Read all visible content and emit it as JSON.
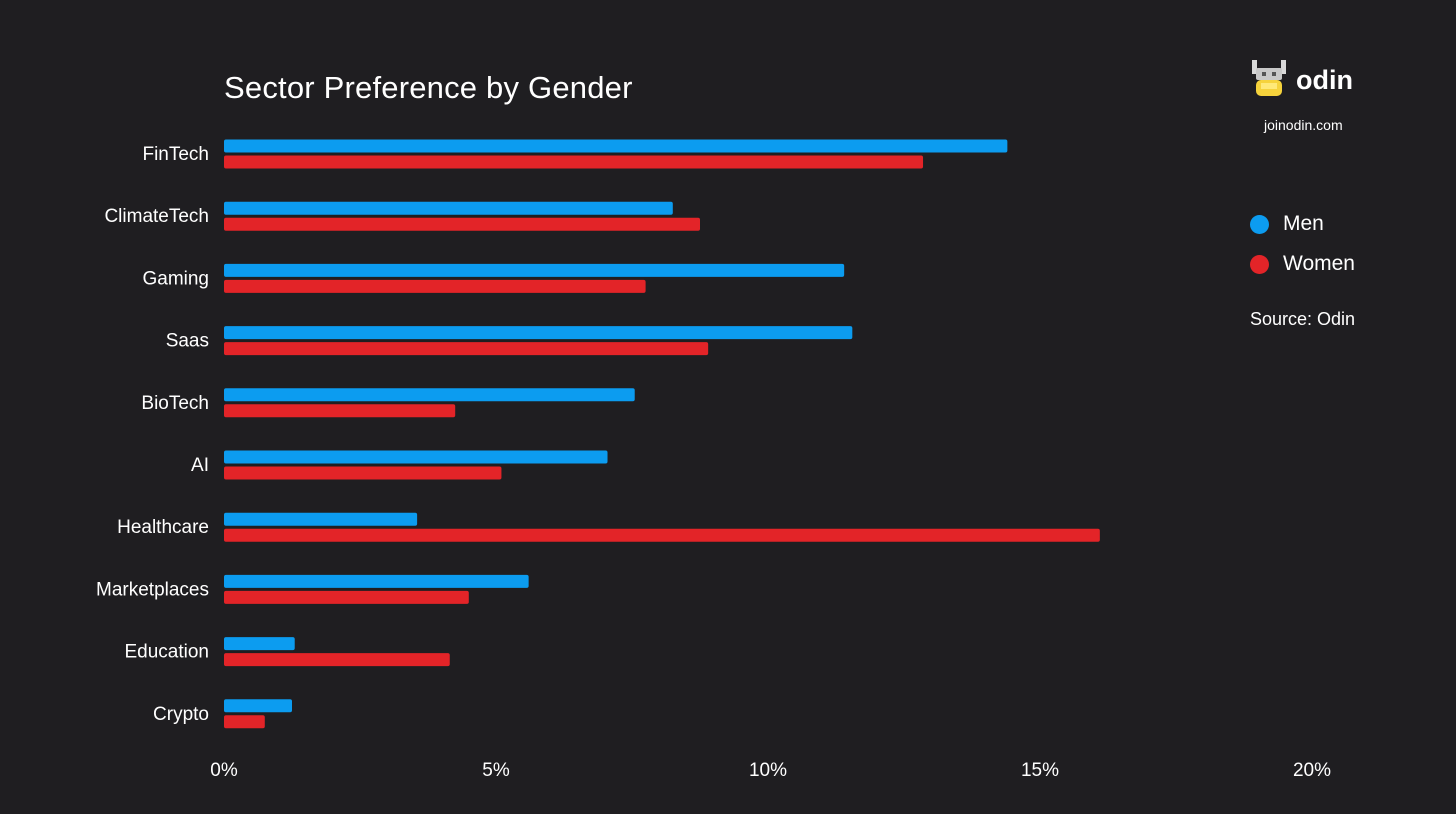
{
  "brand": {
    "name": "odin",
    "url": "joinodin.com",
    "logo_icon": "viking-helmet-icon"
  },
  "source": "Source: Odin",
  "legend": [
    {
      "label": "Men",
      "color": "#0c9cf0"
    },
    {
      "label": "Women",
      "color": "#e32428"
    }
  ],
  "chart_data": {
    "type": "bar",
    "orientation": "horizontal",
    "title": "Sector Preference by Gender",
    "xlabel": "",
    "ylabel": "",
    "categories": [
      "FinTech",
      "ClimateTech",
      "Gaming",
      "Saas",
      "BioTech",
      "AI",
      "Healthcare",
      "Marketplaces",
      "Education",
      "Crypto"
    ],
    "series": [
      {
        "name": "Men",
        "color": "#0c9cf0",
        "values": [
          14.4,
          8.25,
          11.4,
          11.55,
          7.55,
          7.05,
          3.55,
          5.6,
          1.3,
          1.25
        ]
      },
      {
        "name": "Women",
        "color": "#e32428",
        "values": [
          12.85,
          8.75,
          7.75,
          8.9,
          4.25,
          5.1,
          16.1,
          4.5,
          4.15,
          0.75
        ]
      }
    ],
    "xlim": [
      0,
      20
    ],
    "xticks": [
      "0%",
      "5%",
      "10%",
      "15%",
      "20%"
    ],
    "xtick_values": [
      0,
      5,
      10,
      15,
      20
    ],
    "grid": false,
    "legend_position": "right"
  }
}
